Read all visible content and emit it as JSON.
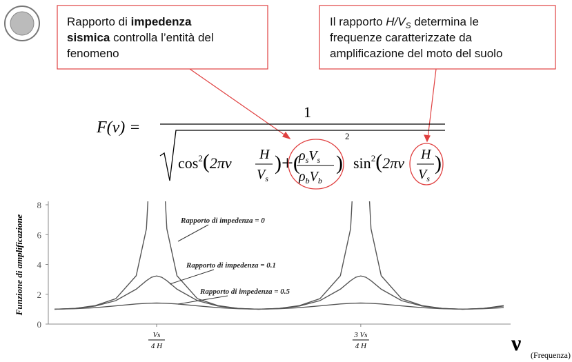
{
  "callouts": [
    {
      "lines": [
        [
          "Rapporto di ",
          "impedenza"
        ],
        [
          "sismica",
          " controlla l’entità del"
        ],
        [
          "fenomeno"
        ]
      ]
    },
    {
      "lines": [
        [
          "Il rapporto ",
          "H/V",
          "S",
          " determina le"
        ],
        [
          "frequenze caratterizzate da"
        ],
        [
          "amplificazione del moto del suolo"
        ]
      ]
    }
  ],
  "formula": {
    "lhs": "F(ν) =",
    "numerator": "1",
    "cos": "cos",
    "sin": "sin",
    "power": "2",
    "arg": "2πν",
    "H": "H",
    "V": "V",
    "rho": "ρ",
    "s": "s",
    "b": "b"
  },
  "chart_data": {
    "type": "line",
    "y_label": "Funzione di amplificazione",
    "x_label": "ν",
    "x_unit": "(Frequenza)",
    "x": [
      0,
      0.2,
      0.4,
      0.6,
      0.8,
      0.9,
      0.95,
      1.0,
      1.05,
      1.1,
      1.2,
      1.4,
      1.6,
      1.8,
      2.0,
      2.2,
      2.4,
      2.6,
      2.8,
      2.9,
      2.95,
      3.0,
      3.05,
      3.1,
      3.2,
      3.4,
      3.6,
      3.8,
      4.0,
      4.2,
      4.4
    ],
    "series": [
      {
        "name": "Rapporto di impedenza = 0",
        "color": "#555555",
        "values": [
          1,
          1.05,
          1.24,
          1.7,
          3.24,
          6.39,
          12.75,
          null,
          12.75,
          6.39,
          3.24,
          1.7,
          1.24,
          1.05,
          1,
          1.05,
          1.24,
          1.7,
          3.24,
          6.39,
          12.75,
          null,
          12.75,
          6.39,
          3.24,
          1.7,
          1.24,
          1.05,
          1,
          1.05,
          1.24
        ]
      },
      {
        "name": "Rapporto di impedenza = 0.1",
        "color": "#555555",
        "values": [
          1,
          1.05,
          1.21,
          1.57,
          2.34,
          2.91,
          3.14,
          3.23,
          3.14,
          2.91,
          2.34,
          1.57,
          1.21,
          1.05,
          1,
          1.05,
          1.21,
          1.57,
          2.34,
          2.91,
          3.14,
          3.23,
          3.14,
          2.91,
          2.34,
          1.57,
          1.21,
          1.05,
          1,
          1.05,
          1.21
        ]
      },
      {
        "name": "Rapporto di impedenza = 0.5",
        "color": "#555555",
        "values": [
          1,
          1.03,
          1.1,
          1.22,
          1.35,
          1.39,
          1.4,
          1.41,
          1.4,
          1.39,
          1.35,
          1.22,
          1.1,
          1.03,
          1,
          1.03,
          1.1,
          1.22,
          1.35,
          1.39,
          1.4,
          1.41,
          1.4,
          1.39,
          1.35,
          1.22,
          1.1,
          1.03,
          1,
          1.03,
          1.1
        ]
      }
    ],
    "xlim": [
      0,
      4.4
    ],
    "xticks": [
      {
        "value": 1,
        "label": {
          "numerator": "Vs",
          "denominator": "4 H"
        }
      },
      {
        "value": 3,
        "label": {
          "numerator": "3 Vs",
          "denominator": "4 H"
        }
      }
    ],
    "ylim": [
      0,
      8
    ],
    "yticks": [
      0,
      2,
      4,
      6,
      8
    ]
  }
}
